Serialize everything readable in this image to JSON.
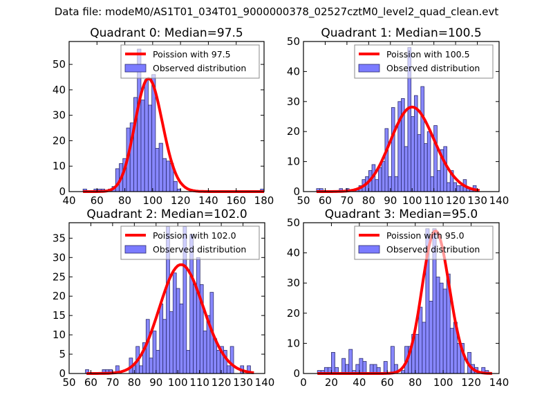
{
  "suptitle": "Data file: modeM0/AS1T01_034T01_9000000378_02527cztM0_level2_quad_clean.evt",
  "colors": {
    "hist_fill": "#7b7bff",
    "hist_edge": "#2a2a6a",
    "curve": "#ff0000",
    "axes": "#000000"
  },
  "chart_data": [
    {
      "type": "bar",
      "title": "Quadrant 0: Median=97.5",
      "xlim": [
        40,
        180
      ],
      "ylim": [
        0,
        59
      ],
      "xticks": [
        40,
        60,
        80,
        100,
        120,
        140,
        160,
        180
      ],
      "yticks": [
        0,
        10,
        20,
        30,
        40,
        50
      ],
      "bin_start": 50,
      "bin_width": 2.6,
      "counts": [
        1,
        0,
        0,
        1,
        1,
        1,
        0,
        1,
        2,
        9,
        11,
        13,
        25,
        27,
        37,
        56,
        36,
        44,
        34,
        46,
        17,
        19,
        13,
        12,
        11,
        4,
        1,
        0,
        0,
        0,
        0,
        0,
        0,
        0,
        0,
        0,
        0,
        0,
        0,
        0,
        0,
        0,
        0,
        0,
        0,
        0,
        0,
        0,
        0,
        1
      ],
      "poisson_mean": 97.5,
      "legend": [
        "Poission with 97.5",
        "Observed distribution"
      ]
    },
    {
      "type": "bar",
      "title": "Quadrant 1: Median=100.5",
      "xlim": [
        50,
        140
      ],
      "ylim": [
        0,
        50
      ],
      "xticks": [
        50,
        60,
        70,
        80,
        90,
        100,
        110,
        120,
        130,
        140
      ],
      "yticks": [
        0,
        10,
        20,
        30,
        40,
        50
      ],
      "bin_start": 56,
      "bin_width": 1.5,
      "counts": [
        1,
        1,
        0,
        0,
        0,
        0,
        0,
        1,
        0,
        1,
        0,
        0,
        1,
        2,
        4,
        5,
        7,
        9,
        4,
        8,
        10,
        21,
        5,
        28,
        5,
        30,
        31,
        15,
        48,
        25,
        32,
        19,
        35,
        16,
        20,
        5,
        22,
        7,
        14,
        15,
        3,
        7,
        3,
        2,
        2,
        4,
        1,
        1,
        2,
        0
      ],
      "poisson_mean": 100.5,
      "legend": [
        "Poission with 100.5",
        "Observed distribution"
      ]
    },
    {
      "type": "bar",
      "title": "Quadrant 2: Median=102.0",
      "xlim": [
        50,
        140
      ],
      "ylim": [
        0,
        39
      ],
      "xticks": [
        50,
        60,
        70,
        80,
        90,
        100,
        110,
        120,
        130,
        140
      ],
      "yticks": [
        0,
        5,
        10,
        15,
        20,
        25,
        30,
        35
      ],
      "bin_start": 57.5,
      "bin_width": 1.55,
      "counts": [
        1,
        0,
        0,
        0,
        0,
        1,
        1,
        1,
        0,
        2,
        0,
        0,
        0,
        4,
        2,
        7,
        2,
        8,
        14,
        4,
        11,
        6,
        18,
        14,
        38,
        16,
        26,
        22,
        18,
        38,
        6,
        36,
        23,
        30,
        23,
        11,
        15,
        21,
        9,
        6,
        7,
        6,
        2,
        7,
        0,
        0,
        2,
        0,
        2,
        0
      ],
      "poisson_mean": 102.0,
      "legend": [
        "Poission with 102.0",
        "Observed distribution"
      ]
    },
    {
      "type": "bar",
      "title": "Quadrant 3: Median=95.0",
      "xlim": [
        0,
        140
      ],
      "ylim": [
        0,
        50
      ],
      "xticks": [
        0,
        20,
        40,
        60,
        80,
        100,
        120,
        140
      ],
      "yticks": [
        0,
        10,
        20,
        30,
        40,
        50
      ],
      "bin_start": 10,
      "bin_width": 2.5,
      "counts": [
        1,
        1,
        2,
        2,
        7,
        2,
        0,
        5,
        3,
        8,
        1,
        3,
        5,
        4,
        0,
        3,
        3,
        2,
        0,
        4,
        0,
        9,
        3,
        0,
        1,
        9,
        9,
        13,
        13,
        22,
        17,
        48,
        24,
        48,
        32,
        30,
        28,
        33,
        15,
        17,
        10,
        10,
        0,
        7,
        3,
        2,
        0,
        2,
        1,
        0
      ],
      "poisson_mean": 95.0,
      "legend": [
        "Poission with 95.0",
        "Observed distribution"
      ]
    }
  ]
}
